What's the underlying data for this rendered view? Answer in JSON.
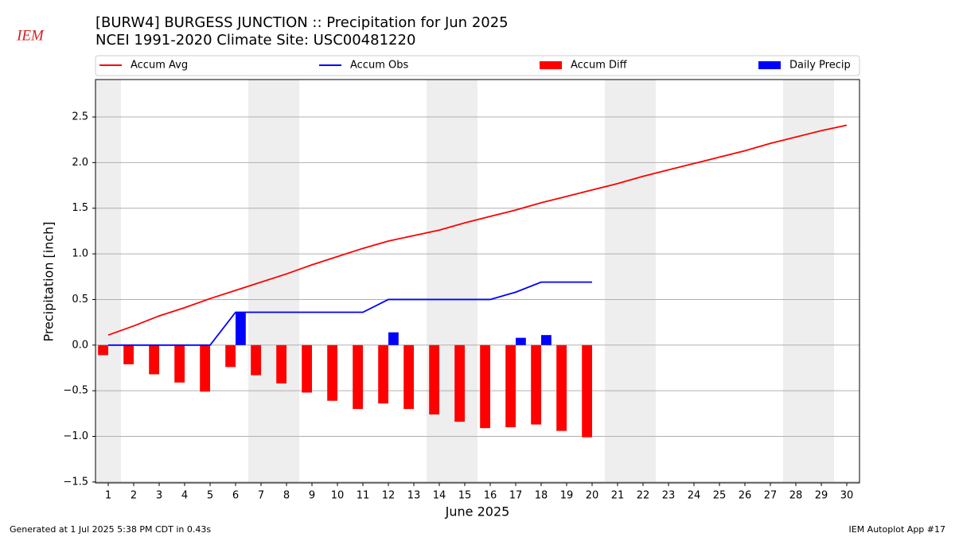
{
  "chart_data": {
    "type": "bar",
    "logo": "IEM",
    "title": "[BURW4] BURGESS JUNCTION :: Precipitation for Jun 2025",
    "subtitle": "NCEI 1991-2020 Climate Site: USC00481220",
    "x_label": "June 2025",
    "y_label": "Precipitation [inch]",
    "footer_left": "Generated at 1 Jul 2025 5:38 PM CDT in 0.43s",
    "footer_right": "IEM Autoplot App #17",
    "x": [
      1,
      2,
      3,
      4,
      5,
      6,
      7,
      8,
      9,
      10,
      11,
      12,
      13,
      14,
      15,
      16,
      17,
      18,
      19,
      20,
      21,
      22,
      23,
      24,
      25,
      26,
      27,
      28,
      29,
      30
    ],
    "shaded_days": [
      1,
      7,
      8,
      14,
      15,
      21,
      22,
      28,
      29
    ],
    "xlim": [
      0.5,
      30.5
    ],
    "xticks": [
      1,
      2,
      3,
      4,
      5,
      6,
      7,
      8,
      9,
      10,
      11,
      12,
      13,
      14,
      15,
      16,
      17,
      18,
      19,
      20,
      21,
      22,
      23,
      24,
      25,
      26,
      27,
      28,
      29,
      30
    ],
    "ylim": [
      -1.51,
      2.91
    ],
    "yticks": [
      {
        "value": -1.5,
        "label": "−1.5"
      },
      {
        "value": -1,
        "label": "−1.0"
      },
      {
        "value": -0.5,
        "label": "−0.5"
      },
      {
        "value": 0,
        "label": "0.0"
      },
      0.5,
      {
        "value": 1,
        "label": "1.0"
      },
      1.5,
      {
        "value": 2,
        "label": "2.0"
      },
      2.5
    ],
    "grid": true,
    "series": [
      {
        "name": "Accum Avg",
        "color": "#ff0000",
        "kind": "line",
        "values": [
          0.11,
          0.21,
          0.32,
          0.41,
          0.51,
          0.6,
          0.69,
          0.78,
          0.88,
          0.97,
          1.06,
          1.14,
          1.2,
          1.26,
          1.34,
          1.41,
          1.48,
          1.56,
          1.63,
          1.7,
          1.77,
          1.85,
          1.92,
          1.99,
          2.06,
          2.13,
          2.21,
          2.28,
          2.35,
          2.41
        ]
      },
      {
        "name": "Accum Obs",
        "color": "#0000ff",
        "kind": "line",
        "values": [
          0,
          0,
          0,
          0,
          0,
          0.36,
          0.36,
          0.36,
          0.36,
          0.36,
          0.36,
          0.5,
          0.5,
          0.5,
          0.5,
          0.5,
          0.58,
          0.69,
          0.69,
          0.69,
          null,
          null,
          null,
          null,
          null,
          null,
          null,
          null,
          null,
          null
        ]
      },
      {
        "name": "Accum Diff",
        "color": "#ff0000",
        "kind": "bar",
        "offset": -0.2,
        "values": [
          -0.11,
          -0.21,
          -0.32,
          -0.41,
          -0.51,
          -0.24,
          -0.33,
          -0.42,
          -0.52,
          -0.61,
          -0.7,
          -0.64,
          -0.7,
          -0.76,
          -0.84,
          -0.91,
          -0.9,
          -0.87,
          -0.94,
          -1.01,
          null,
          null,
          null,
          null,
          null,
          null,
          null,
          null,
          null,
          null
        ]
      },
      {
        "name": "Daily Precip",
        "color": "#0000ff",
        "kind": "bar",
        "offset": 0.2,
        "values": [
          0,
          0,
          0,
          0,
          0,
          0.36,
          0,
          0,
          0,
          0,
          0,
          0.14,
          0,
          0,
          0,
          0,
          0.08,
          0.11,
          0,
          0,
          null,
          null,
          null,
          null,
          null,
          null,
          null,
          null,
          null,
          null
        ]
      }
    ]
  }
}
